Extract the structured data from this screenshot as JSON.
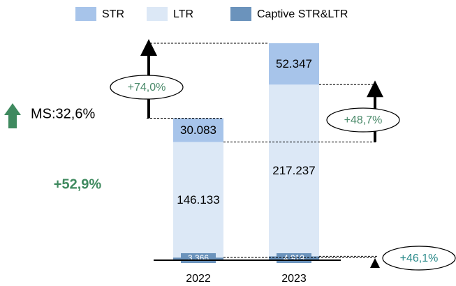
{
  "chart_data": {
    "type": "stacked_bar",
    "categories": [
      "2022",
      "2023"
    ],
    "series": [
      {
        "name": "Captive STR&LTR",
        "color": "#6b93bc",
        "values": [
          3366,
          4919
        ],
        "value_labels": [
          "3.366",
          "4.919"
        ]
      },
      {
        "name": "LTR",
        "color": "#dce8f6",
        "values": [
          146133,
          217237
        ],
        "value_labels": [
          "146.133",
          "217.237"
        ]
      },
      {
        "name": "STR",
        "color": "#a7c4ea",
        "values": [
          30083,
          52347
        ],
        "value_labels": [
          "30.083",
          "52.347"
        ]
      }
    ],
    "legend_order": [
      2,
      1,
      0
    ],
    "annotations": [
      "+74,0%",
      "+48,7%",
      "+46,1%",
      "MS:32,6%",
      "+52,9%"
    ]
  }
}
